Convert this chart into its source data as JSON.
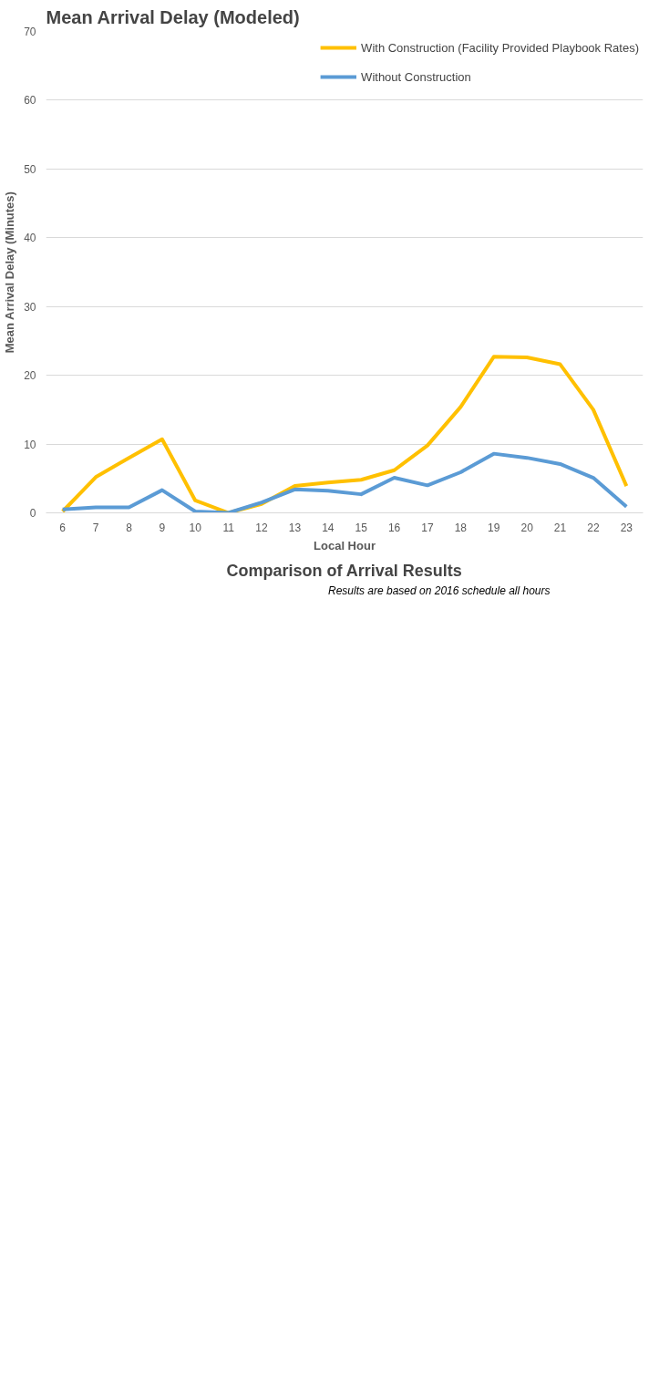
{
  "chart_data": {
    "type": "line",
    "title": "Mean Arrival Delay (Modeled)",
    "subtitle": "Comparison of Arrival Results",
    "xlabel": "Local Hour",
    "ylabel": "Mean Arrival Delay (Minutes)",
    "categories": [
      "6",
      "7",
      "8",
      "9",
      "10",
      "11",
      "12",
      "13",
      "14",
      "15",
      "16",
      "17",
      "18",
      "19",
      "20",
      "21",
      "22",
      "23"
    ],
    "series": [
      {
        "name": "With Construction (Facility Provided Playbook Rates)",
        "color": "#ffc000",
        "values": [
          0.2,
          5.2,
          8,
          10.7,
          1.8,
          0,
          1.3,
          3.9,
          4.4,
          4.8,
          6.2,
          9.8,
          15.4,
          22.7,
          22.6,
          21.6,
          15,
          3.9
        ]
      },
      {
        "name": "Without Construction",
        "color": "#5b9bd5",
        "values": [
          0.5,
          0.8,
          0.8,
          3.3,
          0.2,
          0,
          1.5,
          3.4,
          3.2,
          2.7,
          5.1,
          4,
          5.9,
          8.6,
          8,
          7.1,
          5.1,
          0.9
        ]
      }
    ],
    "ylim": [
      0,
      70
    ],
    "yticks": [
      0,
      10,
      20,
      30,
      40,
      50,
      60,
      70
    ],
    "grid": "y",
    "legend": "top right",
    "marker": "none",
    "line_style": "solid",
    "annotations": [
      "Results are based on 2016 schedule all hours"
    ]
  }
}
